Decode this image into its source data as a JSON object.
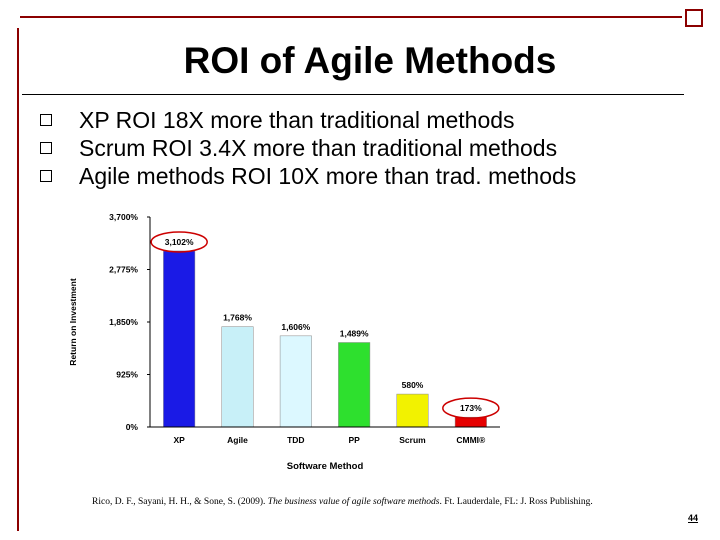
{
  "slide": {
    "title": "ROI of Agile Methods",
    "bullets": [
      "XP ROI 18X more than traditional methods",
      "Scrum ROI 3.4X more than traditional methods",
      "Agile methods ROI 10X more than trad. methods"
    ],
    "citation_authors": "Rico, D. F., Sayani, H. H., & Sone, S. (2009). ",
    "citation_title": "The business value of agile software methods",
    "citation_rest": ". Ft. Lauderdale, FL: J. Ross Publishing.",
    "page_number": "44"
  },
  "colors": {
    "accent_rule": "#8b0000",
    "highlight_ellipse": "#cc0000"
  },
  "chart_data": {
    "type": "bar",
    "xlabel": "Software Method",
    "ylabel": "Return on Investment",
    "categories": [
      "XP",
      "Agile",
      "TDD",
      "PP",
      "Scrum",
      "CMMI®"
    ],
    "values": [
      3102,
      1768,
      1606,
      1489,
      580,
      173
    ],
    "value_labels": [
      "3,102%",
      "1,768%",
      "1,606%",
      "1,489%",
      "580%",
      "173%"
    ],
    "bar_colors": [
      "#1a1ae6",
      "#c8f0f8",
      "#dcf8ff",
      "#2ee02e",
      "#f2f200",
      "#e60000"
    ],
    "ylim": [
      0,
      3700
    ],
    "yticks": [
      0,
      925,
      1850,
      2775,
      3700
    ],
    "ytick_labels": [
      "0%",
      "925%",
      "1,850%",
      "2,775%",
      "3,700%"
    ],
    "highlighted": [
      "XP",
      "CMMI®"
    ],
    "grid": false,
    "legend": "none"
  }
}
